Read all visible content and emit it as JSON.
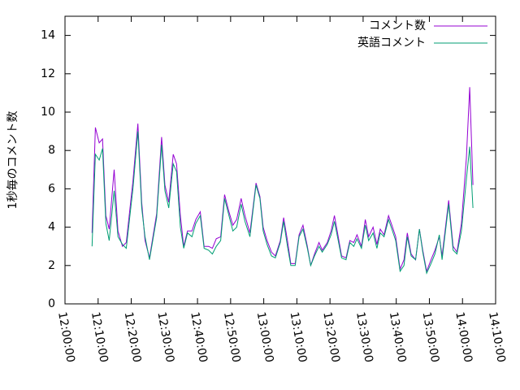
{
  "chart_data": {
    "type": "line",
    "ylabel": "1秒毎のコメント数",
    "x": [
      "12:08:10",
      "12:09:10",
      "12:10:20",
      "12:11:20",
      "12:12:20",
      "12:13:20",
      "12:14:50",
      "12:16:00",
      "12:17:20",
      "12:18:30",
      "12:20:30",
      "12:22:00",
      "12:23:10",
      "12:24:10",
      "12:25:30",
      "12:27:40",
      "12:29:10",
      "12:30:10",
      "12:31:20",
      "12:32:40",
      "12:33:40",
      "12:34:50",
      "12:35:50",
      "12:37:00",
      "12:38:20",
      "12:39:30",
      "12:40:50",
      "12:42:00",
      "12:43:20",
      "12:44:30",
      "12:45:40",
      "12:47:00",
      "12:48:10",
      "12:49:30",
      "12:50:40",
      "12:51:50",
      "12:53:10",
      "12:54:20",
      "12:55:50",
      "12:57:40",
      "12:58:50",
      "12:59:50",
      "13:01:00",
      "13:02:20",
      "13:03:30",
      "13:05:00",
      "13:06:00",
      "13:07:10",
      "13:08:10",
      "13:09:30",
      "13:10:40",
      "13:11:50",
      "13:13:10",
      "13:14:10",
      "13:15:20",
      "13:16:40",
      "13:17:40",
      "13:19:10",
      "13:20:20",
      "13:21:20",
      "13:22:30",
      "13:23:30",
      "13:24:50",
      "13:26:00",
      "13:27:10",
      "13:28:10",
      "13:29:30",
      "13:30:40",
      "13:31:40",
      "13:33:00",
      "13:34:10",
      "13:35:10",
      "13:36:20",
      "13:37:40",
      "13:38:40",
      "13:39:50",
      "13:41:10",
      "13:42:20",
      "13:43:20",
      "13:44:30",
      "13:45:50",
      "13:47:00",
      "13:48:00",
      "13:49:10",
      "13:50:30",
      "13:51:40",
      "13:53:00",
      "13:53:50",
      "13:55:50",
      "13:57:10",
      "13:58:20",
      "13:59:40",
      "14:01:10",
      "14:02:10",
      "14:03:10"
    ],
    "series": [
      {
        "name": "コメント数",
        "color": "#9400d3",
        "values": [
          3.7,
          9.2,
          8.4,
          8.6,
          4.6,
          3.9,
          7.0,
          3.8,
          3.0,
          3.2,
          6.4,
          9.4,
          5.3,
          3.3,
          2.4,
          4.7,
          8.7,
          6.2,
          5.3,
          7.8,
          7.3,
          4.6,
          3.0,
          3.8,
          3.8,
          4.4,
          4.8,
          3.0,
          3.0,
          2.9,
          3.4,
          3.5,
          5.7,
          4.8,
          4.1,
          4.4,
          5.5,
          4.6,
          3.7,
          6.3,
          5.6,
          4.0,
          3.3,
          2.7,
          2.5,
          3.3,
          4.5,
          3.3,
          2.1,
          2.1,
          3.6,
          4.1,
          3.0,
          2.0,
          2.6,
          3.2,
          2.8,
          3.2,
          3.8,
          4.6,
          3.5,
          2.5,
          2.4,
          3.3,
          3.2,
          3.6,
          3.0,
          4.4,
          3.5,
          4.0,
          3.1,
          3.9,
          3.6,
          4.6,
          4.1,
          3.5,
          1.8,
          2.3,
          3.7,
          2.6,
          2.3,
          3.9,
          2.8,
          1.7,
          2.3,
          2.8,
          3.5,
          2.5,
          5.4,
          3.0,
          2.7,
          4.2,
          7.6,
          11.3,
          6.2
        ]
      },
      {
        "name": "英語コメント",
        "color": "#009e73",
        "values": [
          3.0,
          7.8,
          7.5,
          8.1,
          4.2,
          3.3,
          5.9,
          3.5,
          3.1,
          2.9,
          6.0,
          9.0,
          5.0,
          3.5,
          2.3,
          4.5,
          8.3,
          5.9,
          5.0,
          7.3,
          6.9,
          4.0,
          2.9,
          3.7,
          3.5,
          4.2,
          4.6,
          2.9,
          2.8,
          2.6,
          3.0,
          3.3,
          5.5,
          4.6,
          3.8,
          4.0,
          5.2,
          4.3,
          3.5,
          6.2,
          5.5,
          3.8,
          3.1,
          2.5,
          2.4,
          3.2,
          4.3,
          3.0,
          2.0,
          2.0,
          3.5,
          3.9,
          2.9,
          2.0,
          2.5,
          3.0,
          2.7,
          3.1,
          3.6,
          4.3,
          3.3,
          2.4,
          2.3,
          3.2,
          3.0,
          3.4,
          2.9,
          4.1,
          3.3,
          3.7,
          2.9,
          3.7,
          3.5,
          4.4,
          3.9,
          3.3,
          1.7,
          2.0,
          3.5,
          2.5,
          2.3,
          3.9,
          2.7,
          1.6,
          2.1,
          2.6,
          3.6,
          2.3,
          5.2,
          2.8,
          2.6,
          3.8,
          6.5,
          8.2,
          5.0
        ]
      }
    ],
    "xlim": [
      "12:00:00",
      "14:10:00"
    ],
    "xticks": [
      "12:00:00",
      "12:10:00",
      "12:20:00",
      "12:30:00",
      "12:40:00",
      "12:50:00",
      "13:00:00",
      "13:10:00",
      "13:20:00",
      "13:30:00",
      "13:40:00",
      "13:50:00",
      "14:00:00",
      "14:10:00"
    ],
    "ylim": [
      0,
      15
    ],
    "yticks": [
      0,
      2,
      4,
      6,
      8,
      10,
      12,
      14
    ],
    "legend": "top-right"
  }
}
